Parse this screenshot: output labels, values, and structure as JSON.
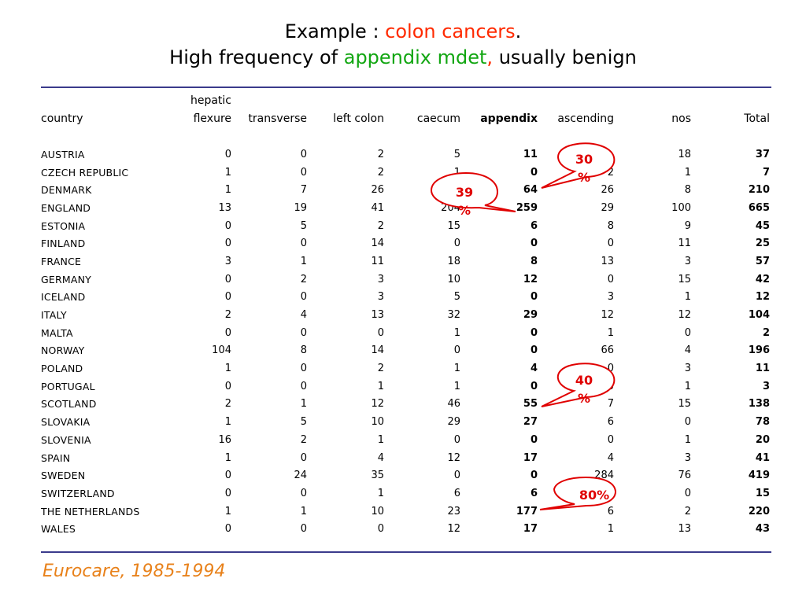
{
  "title": {
    "line1_prefix": "Example : ",
    "line1_highlight": "colon cancers",
    "line1_suffix": ".",
    "line2_prefix": "High frequency of ",
    "line2_highlight": "appendix mdet",
    "line2_comma": ",",
    "line2_suffix": " usually benign"
  },
  "colors": {
    "highlight_red": "#ff2a00",
    "highlight_green": "#11a611",
    "rule": "#3b3b8c",
    "source": "#e8811a",
    "callout": "#e00000"
  },
  "table": {
    "header_top": {
      "hepatic": "hepatic"
    },
    "columns": [
      "country",
      "flexure",
      "transverse",
      "left colon",
      "caecum",
      "appendix",
      "ascending",
      "nos",
      "Total"
    ],
    "rows": [
      [
        "AUSTRIA",
        "0",
        "0",
        "2",
        "5",
        "11",
        "",
        "18",
        "37"
      ],
      [
        "CZECH REPUBLIC",
        "1",
        "0",
        "2",
        "1",
        "0",
        "2",
        "1",
        "7"
      ],
      [
        "DENMARK",
        "1",
        "7",
        "26",
        "",
        "64",
        "26",
        "8",
        "210"
      ],
      [
        "ENGLAND",
        "13",
        "19",
        "41",
        "204",
        "259",
        "29",
        "100",
        "665"
      ],
      [
        "ESTONIA",
        "0",
        "5",
        "2",
        "15",
        "6",
        "8",
        "9",
        "45"
      ],
      [
        "FINLAND",
        "0",
        "0",
        "14",
        "0",
        "0",
        "0",
        "11",
        "25"
      ],
      [
        "FRANCE",
        "3",
        "1",
        "11",
        "18",
        "8",
        "13",
        "3",
        "57"
      ],
      [
        "GERMANY",
        "0",
        "2",
        "3",
        "10",
        "12",
        "0",
        "15",
        "42"
      ],
      [
        "ICELAND",
        "0",
        "0",
        "3",
        "5",
        "0",
        "3",
        "1",
        "12"
      ],
      [
        "ITALY",
        "2",
        "4",
        "13",
        "32",
        "29",
        "12",
        "12",
        "104"
      ],
      [
        "MALTA",
        "0",
        "0",
        "0",
        "1",
        "0",
        "1",
        "0",
        "2"
      ],
      [
        "NORWAY",
        "104",
        "8",
        "14",
        "0",
        "0",
        "66",
        "4",
        "196"
      ],
      [
        "POLAND",
        "1",
        "0",
        "2",
        "1",
        "4",
        "0",
        "3",
        "11"
      ],
      [
        "PORTUGAL",
        "0",
        "0",
        "1",
        "1",
        "0",
        "0",
        "1",
        "3"
      ],
      [
        "SCOTLAND",
        "2",
        "1",
        "12",
        "46",
        "55",
        "7",
        "15",
        "138"
      ],
      [
        "SLOVAKIA",
        "1",
        "5",
        "10",
        "29",
        "27",
        "6",
        "0",
        "78"
      ],
      [
        "SLOVENIA",
        "16",
        "2",
        "1",
        "0",
        "0",
        "0",
        "1",
        "20"
      ],
      [
        "SPAIN",
        "1",
        "0",
        "4",
        "12",
        "17",
        "4",
        "3",
        "41"
      ],
      [
        "SWEDEN",
        "0",
        "24",
        "35",
        "0",
        "0",
        "284",
        "76",
        "419"
      ],
      [
        "SWITZERLAND",
        "0",
        "0",
        "1",
        "6",
        "6",
        "",
        "0",
        "15"
      ],
      [
        "THE NETHERLANDS",
        "1",
        "1",
        "10",
        "23",
        "177",
        "6",
        "2",
        "220"
      ],
      [
        "WALES",
        "0",
        "0",
        "0",
        "12",
        "17",
        "1",
        "13",
        "43"
      ]
    ]
  },
  "callouts": [
    {
      "line1": "30",
      "line2": "%"
    },
    {
      "line1": "39",
      "line2": "%"
    },
    {
      "line1": "40",
      "line2": "%"
    },
    {
      "line1": "80%",
      "line2": ""
    }
  ],
  "source": "Eurocare, 1985-1994"
}
